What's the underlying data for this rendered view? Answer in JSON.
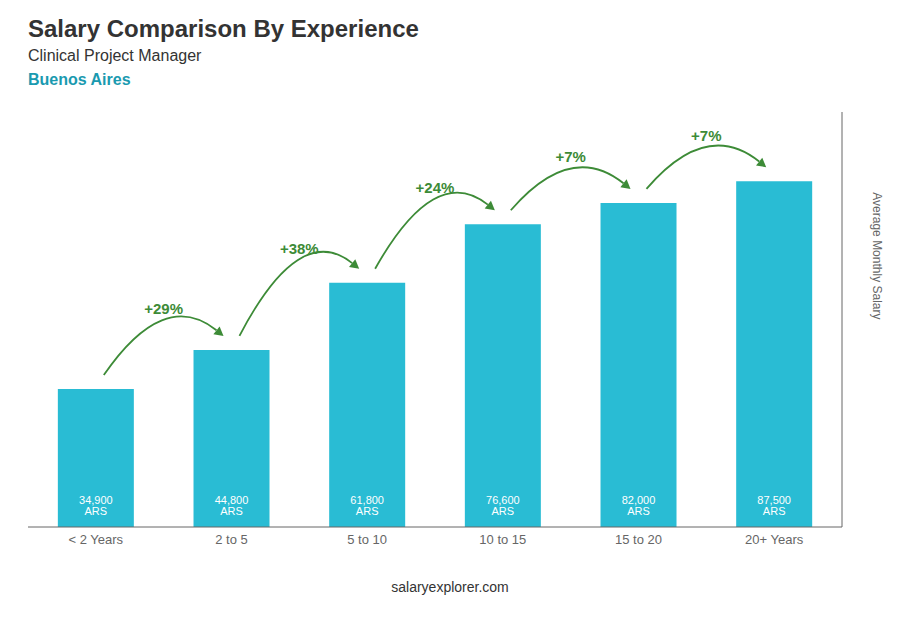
{
  "chart_data": {
    "type": "bar",
    "title": "Salary Comparison By Experience",
    "subtitle": "Clinical Project Manager",
    "y_label": "Average Monthly Salary",
    "categories": [
      "< 2 Years",
      "2 to 5",
      "5 to 10",
      "10 to 15",
      "15 to 20",
      "20+ Years"
    ],
    "values": [
      34900,
      44800,
      61800,
      76600,
      82000,
      87500
    ],
    "value_labels": [
      "34,900 ARS",
      "44,800 ARS",
      "61,800 ARS",
      "76,600 ARS",
      "82,000 ARS",
      "87,500 ARS"
    ],
    "data_labels": true,
    "color": "#29bcd4",
    "ylim": [
      0,
      105000
    ],
    "tick_labels": "x",
    "grid": false,
    "annotations": [
      {
        "text": "Buenos Aires"
      },
      {
        "text": "salaryexplorer.com"
      },
      {
        "text": "+29%",
        "between": [
          "< 2 Years",
          "2 to 5"
        ]
      },
      {
        "text": "+38%",
        "between": [
          "2 to 5",
          "5 to 10"
        ]
      },
      {
        "text": "+24%",
        "between": [
          "5 to 10",
          "10 to 15"
        ]
      },
      {
        "text": "+7%",
        "between": [
          "10 to 15",
          "15 to 20"
        ]
      },
      {
        "text": "+7%",
        "between": [
          "15 to 20",
          "20+ Years"
        ]
      }
    ]
  }
}
